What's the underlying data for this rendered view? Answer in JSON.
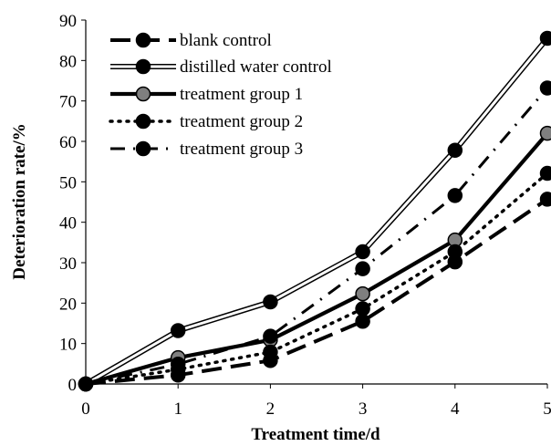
{
  "chart_data": {
    "type": "line",
    "title": "",
    "xlabel": "Treatment time/d",
    "ylabel": "Deterioration rate/%",
    "x": [
      0,
      1,
      2,
      3,
      4,
      5
    ],
    "xlim": [
      0,
      5
    ],
    "ylim": [
      0,
      90
    ],
    "xticks": [
      "0",
      "1",
      "2",
      "3",
      "4",
      "5"
    ],
    "yticks": [
      "0",
      "10",
      "20",
      "30",
      "40",
      "50",
      "60",
      "70",
      "80",
      "90"
    ],
    "grid": false,
    "legend_position": "top-left",
    "series": [
      {
        "name": "blank control",
        "values": [
          0,
          2.2,
          5.8,
          15.5,
          30.2,
          45.7
        ],
        "style": "dash",
        "color": "#000000"
      },
      {
        "name": "distilled water control",
        "values": [
          0,
          13.2,
          20.3,
          32.7,
          57.8,
          85.5
        ],
        "style": "double",
        "color": "#000000"
      },
      {
        "name": "treatment group 1",
        "values": [
          0,
          6.5,
          10.9,
          22.3,
          35.6,
          62.0
        ],
        "style": "thick",
        "color": "#000000",
        "marker_color": "#7f7f7f"
      },
      {
        "name": "treatment group 2",
        "values": [
          0,
          3.6,
          7.9,
          18.6,
          32.7,
          52.1
        ],
        "style": "dot",
        "color": "#000000"
      },
      {
        "name": "treatment group 3",
        "values": [
          0,
          4.9,
          11.8,
          28.5,
          46.6,
          73.2
        ],
        "style": "dashdot",
        "color": "#000000"
      }
    ]
  }
}
